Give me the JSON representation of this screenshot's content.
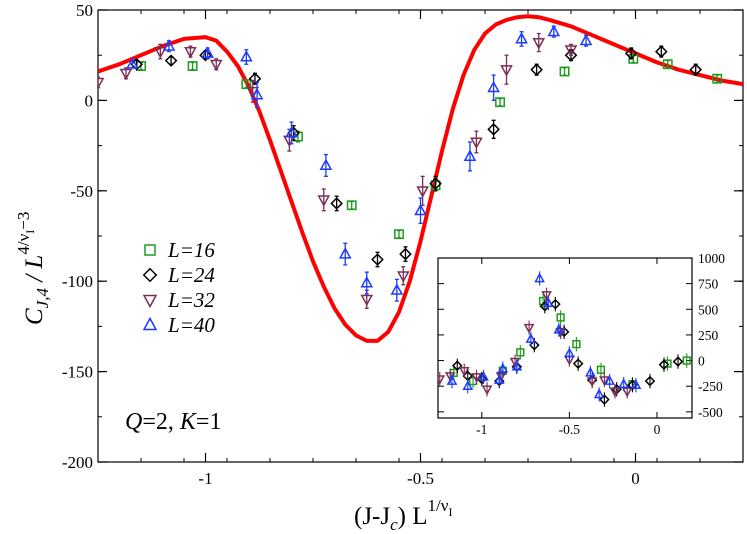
{
  "chart_data": [
    {
      "type": "scatter",
      "xlim": [
        -1.25,
        0.25
      ],
      "ylim": [
        -200,
        50
      ],
      "xticks": [
        -1,
        -0.5,
        0
      ],
      "yticks": [
        50,
        0,
        -50,
        -100,
        -150,
        -200
      ],
      "xtick_labels": [
        "-1",
        "-0.5",
        "0"
      ],
      "ytick_labels": [
        "50",
        "0",
        "-50",
        "-100",
        "-150",
        "-200"
      ],
      "ylabel_main": "C",
      "ylabel_sub": "J,4",
      "ylabel_rest": " / L",
      "ylabel_sup": "4/ν",
      "ylabel_supsub": "I",
      "ylabel_supend": "−3",
      "xlabel_main": "(J-J",
      "xlabel_sub": "c",
      "xlabel_rest": ") L",
      "xlabel_sup": "1/ν",
      "xlabel_supsub": "I",
      "annotation_parts": [
        "Q",
        "=2, ",
        "K",
        "=1"
      ],
      "legend_position": "center-left",
      "series": [
        {
          "name": "L=16",
          "label_italic": "L",
          "label_rest": "=16",
          "marker": "square",
          "color": "#1f9a1f",
          "points": [
            [
              -1.15,
              19,
              2
            ],
            [
              -1.03,
              19,
              2
            ],
            [
              -0.905,
              9,
              2
            ],
            [
              -0.785,
              -20,
              3
            ],
            [
              -0.66,
              -58,
              2
            ],
            [
              -0.55,
              -74,
              2
            ],
            [
              -0.465,
              -47,
              2
            ],
            [
              -0.315,
              -1,
              2
            ],
            [
              -0.165,
              16,
              2
            ],
            [
              -0.005,
              23,
              2
            ],
            [
              0.075,
              20,
              2
            ],
            [
              0.19,
              12,
              2
            ]
          ]
        },
        {
          "name": "L=24",
          "label_italic": "L",
          "label_rest": "=24",
          "marker": "diamond",
          "color": "#000000",
          "points": [
            [
              -1.16,
              20,
              2
            ],
            [
              -1.08,
              22,
              2
            ],
            [
              -1.0,
              25,
              2
            ],
            [
              -0.885,
              12,
              3
            ],
            [
              -0.795,
              -18,
              4
            ],
            [
              -0.695,
              -57,
              4
            ],
            [
              -0.6,
              -88,
              4
            ],
            [
              -0.535,
              -85,
              4
            ],
            [
              -0.465,
              -46,
              4
            ],
            [
              -0.33,
              -16,
              5
            ],
            [
              -0.23,
              17,
              3
            ],
            [
              -0.15,
              25,
              3
            ],
            [
              -0.01,
              26,
              3
            ],
            [
              0.06,
              27,
              3
            ],
            [
              0.14,
              17,
              3
            ]
          ]
        },
        {
          "name": "L=32",
          "label_italic": "L",
          "label_rest": "=32",
          "marker": "triangle-down",
          "color": "#7b2d55",
          "points": [
            [
              -1.25,
              10,
              3
            ],
            [
              -1.185,
              15,
              3
            ],
            [
              -1.105,
              27,
              4
            ],
            [
              -1.035,
              27,
              3
            ],
            [
              -0.975,
              20,
              3
            ],
            [
              -0.89,
              5,
              6
            ],
            [
              -0.805,
              -22,
              6
            ],
            [
              -0.725,
              -55,
              6
            ],
            [
              -0.625,
              -110,
              5
            ],
            [
              -0.54,
              -97,
              5
            ],
            [
              -0.495,
              -50,
              8
            ],
            [
              -0.37,
              -23,
              6
            ],
            [
              -0.3,
              17,
              8
            ],
            [
              -0.225,
              32,
              5
            ],
            [
              -0.15,
              28,
              3
            ]
          ]
        },
        {
          "name": "L=40",
          "label_italic": "L",
          "label_rest": "=40",
          "marker": "triangle-up",
          "color": "#1a3cff",
          "points": [
            [
              -1.17,
              20,
              2
            ],
            [
              -1.085,
              30,
              3
            ],
            [
              -0.995,
              26,
              3
            ],
            [
              -0.905,
              24,
              4
            ],
            [
              -0.88,
              3,
              7
            ],
            [
              -0.8,
              -18,
              6
            ],
            [
              -0.72,
              -36,
              6
            ],
            [
              -0.675,
              -85,
              6
            ],
            [
              -0.625,
              -101,
              6
            ],
            [
              -0.555,
              -105,
              6
            ],
            [
              -0.5,
              -61,
              7
            ],
            [
              -0.385,
              -31,
              8
            ],
            [
              -0.33,
              7,
              7
            ],
            [
              -0.265,
              34,
              4
            ],
            [
              -0.19,
              38,
              3
            ],
            [
              -0.115,
              33,
              3
            ]
          ]
        }
      ],
      "fit_curve": {
        "color": "#ff0000",
        "points": [
          [
            -1.25,
            16
          ],
          [
            -1.2,
            20
          ],
          [
            -1.15,
            25
          ],
          [
            -1.1,
            30
          ],
          [
            -1.05,
            34
          ],
          [
            -1.0,
            35
          ],
          [
            -0.975,
            33
          ],
          [
            -0.95,
            27
          ],
          [
            -0.925,
            19
          ],
          [
            -0.9,
            8
          ],
          [
            -0.875,
            -6
          ],
          [
            -0.85,
            -22
          ],
          [
            -0.825,
            -39
          ],
          [
            -0.8,
            -56
          ],
          [
            -0.775,
            -73
          ],
          [
            -0.75,
            -89
          ],
          [
            -0.725,
            -103
          ],
          [
            -0.7,
            -115
          ],
          [
            -0.675,
            -124
          ],
          [
            -0.65,
            -130
          ],
          [
            -0.625,
            -133
          ],
          [
            -0.6,
            -133
          ],
          [
            -0.575,
            -128
          ],
          [
            -0.55,
            -117
          ],
          [
            -0.525,
            -100
          ],
          [
            -0.5,
            -78
          ],
          [
            -0.475,
            -53
          ],
          [
            -0.45,
            -28
          ],
          [
            -0.425,
            -5
          ],
          [
            -0.4,
            14
          ],
          [
            -0.375,
            28
          ],
          [
            -0.35,
            37
          ],
          [
            -0.325,
            42
          ],
          [
            -0.3,
            44.5
          ],
          [
            -0.275,
            46
          ],
          [
            -0.25,
            46.5
          ],
          [
            -0.225,
            46
          ],
          [
            -0.2,
            44.5
          ],
          [
            -0.15,
            41
          ],
          [
            -0.1,
            36
          ],
          [
            -0.05,
            31
          ],
          [
            0.0,
            26
          ],
          [
            0.05,
            21
          ],
          [
            0.1,
            17
          ],
          [
            0.15,
            14
          ],
          [
            0.2,
            11
          ],
          [
            0.25,
            9
          ]
        ]
      }
    },
    {
      "type": "scatter",
      "xlim": [
        -1.25,
        0.2
      ],
      "ylim": [
        -560,
        1000
      ],
      "xticks": [
        -1,
        -0.5,
        0
      ],
      "yticks": [
        1000,
        750,
        500,
        250,
        0,
        -250,
        -500
      ],
      "xtick_labels": [
        "-1",
        "-0.5",
        "0"
      ],
      "ytick_labels": [
        "1000",
        "750",
        "500",
        "250",
        "0",
        "-250",
        "-500"
      ],
      "series": [
        {
          "name": "L=16",
          "marker": "square",
          "color": "#1f9a1f",
          "points": [
            [
              -1.16,
              -120
            ],
            [
              -1.05,
              -200
            ],
            [
              -0.88,
              -100
            ],
            [
              -0.78,
              80
            ],
            [
              -0.65,
              580
            ],
            [
              -0.55,
              420
            ],
            [
              -0.46,
              160
            ],
            [
              -0.32,
              -90
            ],
            [
              -0.14,
              -230
            ],
            [
              0.06,
              -30
            ],
            [
              0.17,
              0
            ]
          ]
        },
        {
          "name": "L=24",
          "marker": "diamond",
          "color": "#000000",
          "points": [
            [
              -1.14,
              -50
            ],
            [
              -1.08,
              -150
            ],
            [
              -1.0,
              -180
            ],
            [
              -0.9,
              -200
            ],
            [
              -0.8,
              -60
            ],
            [
              -0.7,
              150
            ],
            [
              -0.64,
              530
            ],
            [
              -0.58,
              550
            ],
            [
              -0.53,
              280
            ],
            [
              -0.45,
              -30
            ],
            [
              -0.37,
              -190
            ],
            [
              -0.3,
              -380
            ],
            [
              -0.23,
              -280
            ],
            [
              -0.14,
              -240
            ],
            [
              -0.04,
              -200
            ],
            [
              0.04,
              -40
            ],
            [
              0.12,
              -10
            ]
          ]
        },
        {
          "name": "L=32",
          "marker": "triangle-down",
          "color": "#7b2d55",
          "points": [
            [
              -1.24,
              -180
            ],
            [
              -1.18,
              -150
            ],
            [
              -1.1,
              -100
            ],
            [
              -1.03,
              -160
            ],
            [
              -0.97,
              -280
            ],
            [
              -0.89,
              -150
            ],
            [
              -0.81,
              -10
            ],
            [
              -0.73,
              320
            ],
            [
              -0.63,
              640
            ],
            [
              -0.55,
              280
            ],
            [
              -0.5,
              10
            ],
            [
              -0.37,
              -200
            ],
            [
              -0.3,
              -190
            ],
            [
              -0.24,
              -300
            ],
            [
              -0.17,
              -300
            ]
          ]
        },
        {
          "name": "L=40",
          "marker": "triangle-up",
          "color": "#1a3cff",
          "points": [
            [
              -1.17,
              -200
            ],
            [
              -1.08,
              -250
            ],
            [
              -0.99,
              -160
            ],
            [
              -0.9,
              -190
            ],
            [
              -0.88,
              -80
            ],
            [
              -0.8,
              -60
            ],
            [
              -0.72,
              210
            ],
            [
              -0.67,
              800
            ],
            [
              -0.62,
              560
            ],
            [
              -0.56,
              300
            ],
            [
              -0.5,
              70
            ],
            [
              -0.38,
              -120
            ],
            [
              -0.33,
              -330
            ],
            [
              -0.27,
              -200
            ],
            [
              -0.19,
              -230
            ],
            [
              -0.12,
              -240
            ]
          ]
        }
      ]
    }
  ]
}
